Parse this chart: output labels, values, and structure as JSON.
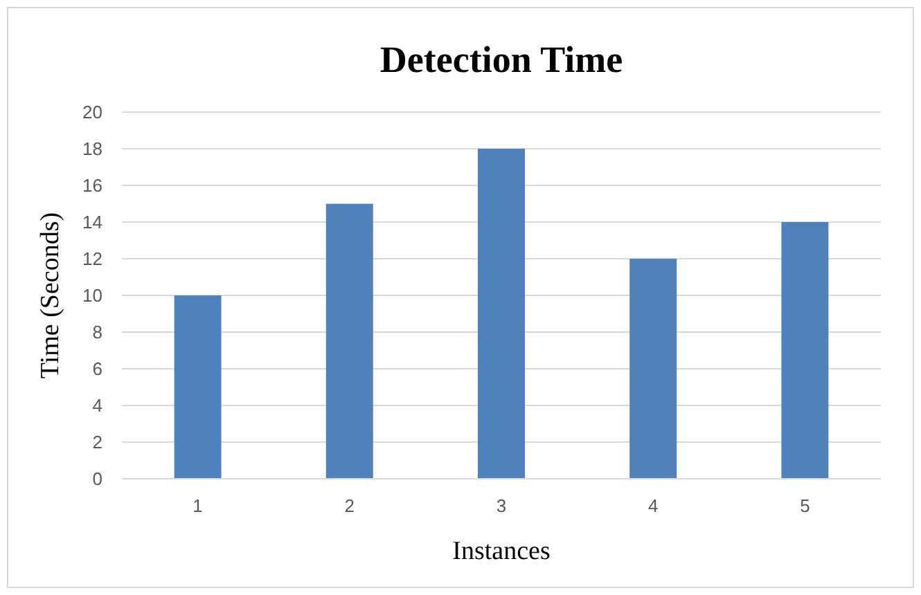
{
  "chart_data": {
    "type": "bar",
    "title": "Detection Time",
    "xlabel": "Instances",
    "ylabel": "Time (Seconds)",
    "categories": [
      "1",
      "2",
      "3",
      "4",
      "5"
    ],
    "values": [
      10,
      15,
      18,
      12,
      14
    ],
    "color": "#4f81bd",
    "ylim": [
      0,
      20
    ],
    "yticks": [
      0,
      2,
      4,
      6,
      8,
      10,
      12,
      14,
      16,
      18,
      20
    ],
    "grid": "y"
  }
}
